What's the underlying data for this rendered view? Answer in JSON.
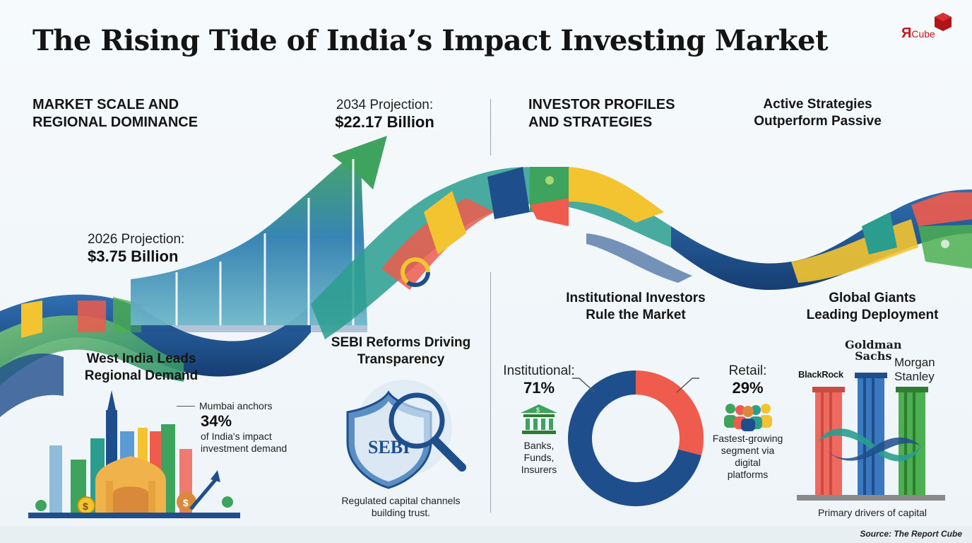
{
  "title": "The Rising Tide of India’s Impact Investing Market",
  "logo": {
    "mark": "Я",
    "text": "Cube"
  },
  "sections": {
    "left_heading_line1": "MARKET SCALE AND",
    "left_heading_line2": "REGIONAL DOMINANCE",
    "right_heading_line1": "INVESTOR PROFILES",
    "right_heading_line2": "AND STRATEGIES",
    "active_line1": "Active Strategies",
    "active_line2": "Outperform Passive"
  },
  "projections": {
    "p2034_label": "2034 Projection:",
    "p2034_value": "$22.17 Billion",
    "p2026_label": "2026 Projection:",
    "p2026_value": "$3.75 Billion"
  },
  "west": {
    "title_line1": "West India Leads",
    "title_line2": "Regional Demand",
    "mumbai_label": "Mumbai anchors",
    "mumbai_pct": "34%",
    "mumbai_desc_line1": "of India's impact",
    "mumbai_desc_line2": "investment demand"
  },
  "sebi": {
    "title_line1": "SEBI Reforms Driving",
    "title_line2": "Transparency",
    "caption_line1": "Regulated capital channels",
    "caption_line2": "building trust.",
    "badge": "SEBI"
  },
  "institutional": {
    "title_line1": "Institutional Investors",
    "title_line2": "Rule the Market",
    "inst_label": "Institutional:",
    "inst_pct": "71%",
    "inst_desc_line1": "Banks,",
    "inst_desc_line2": "Funds,",
    "inst_desc_line3": "Insurers",
    "retail_label": "Retail:",
    "retail_pct": "29%",
    "retail_desc_line1": "Fastest-growing",
    "retail_desc_line2": "segment via",
    "retail_desc_line3": "digital",
    "retail_desc_line4": "platforms",
    "share_institutional": 71,
    "share_retail": 29,
    "color_institutional": "#1f4e8c",
    "color_retail": "#ef5b4c"
  },
  "giants": {
    "title_line1": "Global Giants",
    "title_line2": "Leading Deployment",
    "goldman_line1": "Goldman",
    "goldman_line2": "Sachs",
    "blackrock": "BlackRock",
    "morgan_line1": "Morgan",
    "morgan_line2": "Stanley",
    "caption": "Primary drivers of capital"
  },
  "source": "Source: The Report Cube",
  "colors": {
    "navy": "#1f4e8c",
    "teal": "#2a9d8f",
    "green": "#4caf50",
    "yellow": "#f4c430",
    "coral": "#ef5b4c",
    "brand_red": "#c7171c"
  }
}
